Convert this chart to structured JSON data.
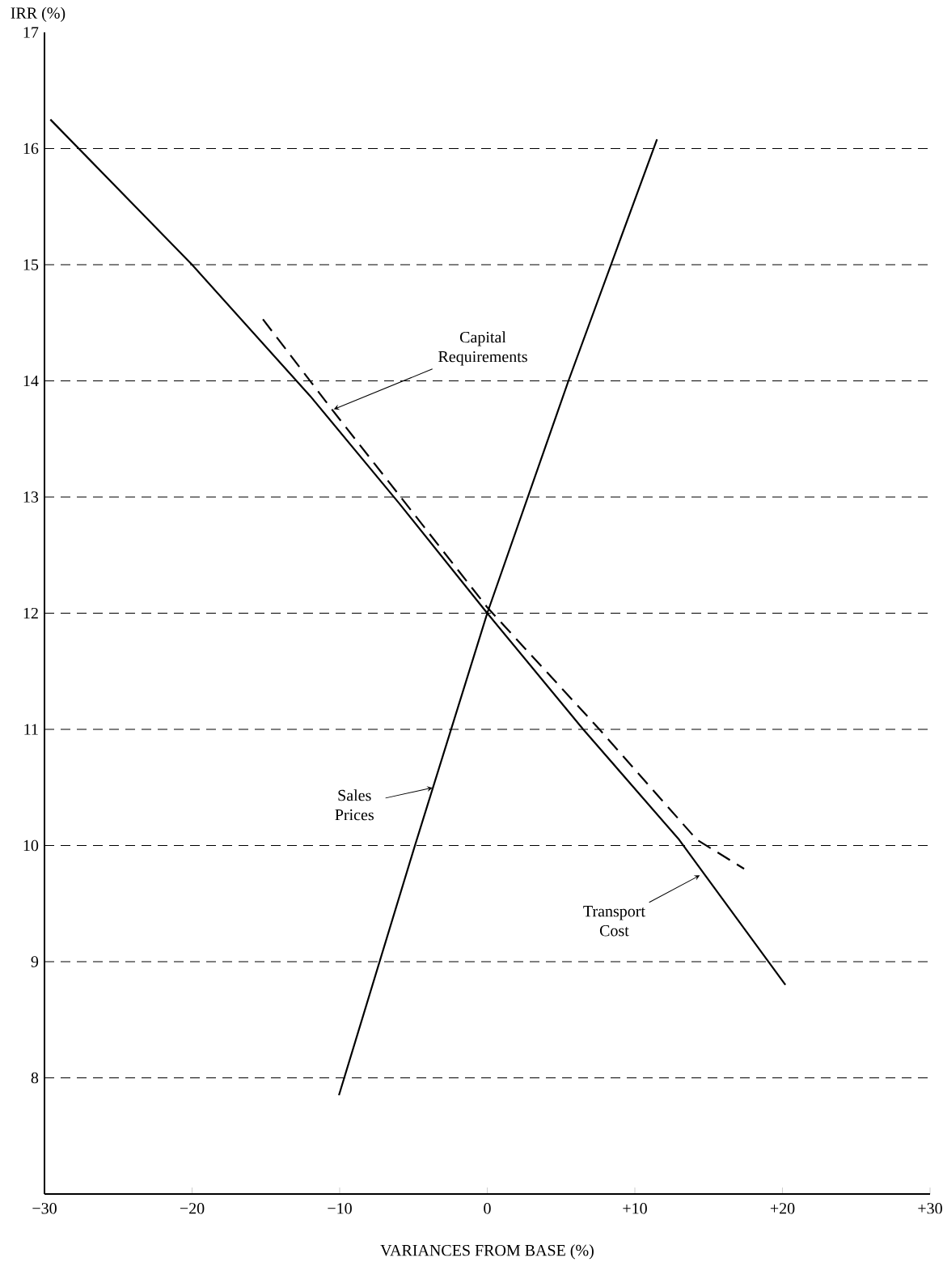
{
  "chart_data": {
    "type": "line",
    "xlabel": "VARIANCES FROM BASE (%)",
    "ylabel": "IRR (%)",
    "xlim": [
      -30,
      30
    ],
    "ylim": [
      7,
      17
    ],
    "xticks": [
      {
        "value": -30,
        "label": "−30"
      },
      {
        "value": -20,
        "label": "−20"
      },
      {
        "value": -10,
        "label": "−10"
      },
      {
        "value": 0,
        "label": "0"
      },
      {
        "value": 10,
        "label": "+10"
      },
      {
        "value": 20,
        "label": "+20"
      },
      {
        "value": 30,
        "label": "+30"
      }
    ],
    "yticks": [
      8,
      9,
      10,
      11,
      12,
      13,
      14,
      15,
      16,
      17
    ],
    "line_style": "solid",
    "marker": "none",
    "series": [
      {
        "color": "#000000",
        "x": [
          -29.6,
          -20,
          -12,
          -6,
          0,
          6.5,
          13,
          20.2
        ],
        "values": [
          16.25,
          15.0,
          13.87,
          12.95,
          12.0,
          11.0,
          10.05,
          8.8
        ]
      },
      {
        "color": "#000000",
        "line_style": "dashed",
        "x": [
          -15.2,
          -10.5,
          0,
          7.6,
          14.2,
          17.4
        ],
        "values": [
          14.53,
          13.75,
          12.05,
          11.0,
          10.05,
          9.8
        ]
      },
      {
        "color": "#000000",
        "x": [
          -10.05,
          -4.9,
          0,
          5.5,
          11.5
        ],
        "values": [
          7.85,
          10.0,
          12.0,
          14.0,
          16.08
        ]
      }
    ],
    "ref_lines": [
      {
        "axis": "y",
        "value": 8,
        "line_style": "dashed",
        "color": "#000000"
      },
      {
        "axis": "y",
        "value": 9,
        "line_style": "dashed",
        "color": "#000000"
      },
      {
        "axis": "y",
        "value": 10,
        "line_style": "dashed",
        "color": "#000000"
      },
      {
        "axis": "y",
        "value": 11,
        "line_style": "dashed",
        "color": "#000000"
      },
      {
        "axis": "y",
        "value": 12,
        "line_style": "dashed",
        "color": "#000000"
      },
      {
        "axis": "y",
        "value": 13,
        "line_style": "dashed",
        "color": "#000000"
      },
      {
        "axis": "y",
        "value": 14,
        "line_style": "dashed",
        "color": "#000000"
      },
      {
        "axis": "y",
        "value": 15,
        "line_style": "dashed",
        "color": "#000000"
      },
      {
        "axis": "y",
        "value": 16,
        "line_style": "dashed",
        "color": "#000000"
      }
    ],
    "annotations": [
      {
        "text": "Capital Requirements",
        "x": -10.5,
        "y": 13.75
      },
      {
        "text": "Sales Prices",
        "x": -3.6,
        "y": 10.5
      },
      {
        "text": "Transport Cost",
        "x": 14.5,
        "y": 9.75
      }
    ]
  }
}
